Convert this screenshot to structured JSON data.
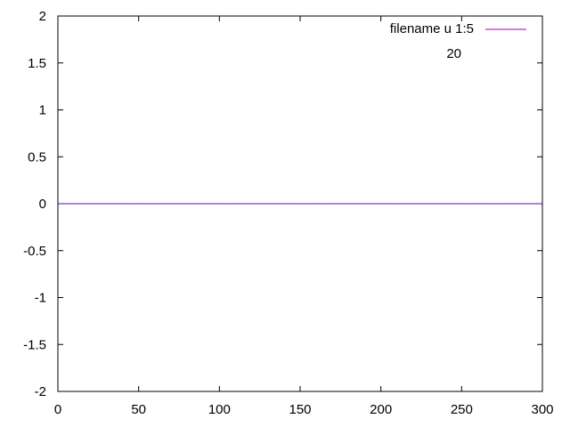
{
  "chart_data": {
    "type": "line",
    "title": "",
    "xlabel": "",
    "ylabel": "",
    "xlim": [
      0,
      300
    ],
    "ylim": [
      -2,
      2
    ],
    "xticks": [
      0,
      50,
      100,
      150,
      200,
      250,
      300
    ],
    "yticks": [
      -2,
      -1.5,
      -1,
      -0.5,
      0,
      0.5,
      1,
      1.5,
      2
    ],
    "xtick_labels": [
      "0",
      "50",
      "100",
      "150",
      "200",
      "250",
      "300"
    ],
    "ytick_labels": [
      "-2",
      "-1.5",
      "-1",
      "-0.5",
      "0",
      "0.5",
      "1",
      "1.5",
      "2"
    ],
    "grid": false,
    "legend_position": "top-right",
    "series": [
      {
        "name": "filename u 1:5",
        "color": "#a000a0",
        "x": [
          0,
          300
        ],
        "y": [
          0,
          0
        ]
      },
      {
        "name": "20",
        "color": "#0000ff",
        "style": "dotted",
        "x": [
          0,
          300
        ],
        "y": [
          0,
          0
        ]
      }
    ]
  }
}
